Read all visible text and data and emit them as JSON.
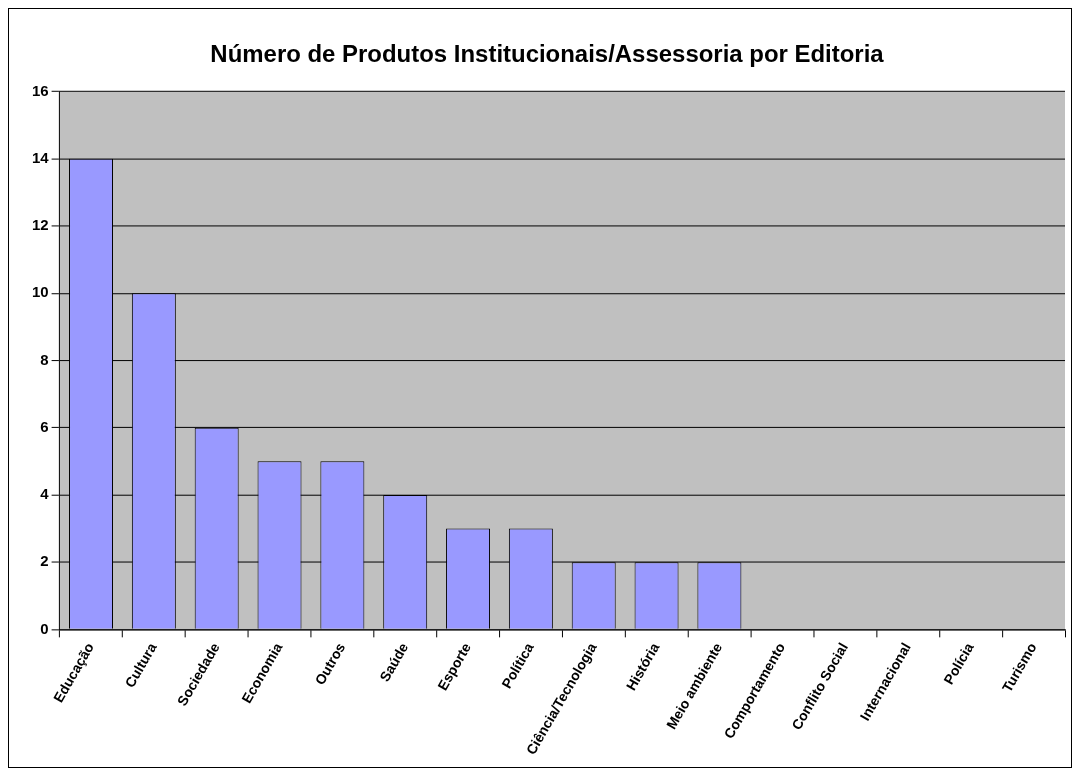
{
  "chart_data": {
    "type": "bar",
    "title": "Número de Produtos Institucionais/Assessoria por Editoria",
    "categories": [
      "Educação",
      "Cultura",
      "Sociedade",
      "Economia",
      "Outros",
      "Saúde",
      "Esporte",
      "Política",
      "Ciência/Tecnologia",
      "História",
      "Meio ambiente",
      "Comportamento",
      "Conflito Social",
      "Internacional",
      "Polícia",
      "Turismo"
    ],
    "values": [
      14,
      10,
      6,
      5,
      5,
      4,
      3,
      3,
      2,
      2,
      2,
      0,
      0,
      0,
      0,
      0
    ],
    "color": "#9999ff",
    "ylim": [
      0,
      16
    ],
    "yticks": [
      0,
      2,
      4,
      6,
      8,
      10,
      12,
      14,
      16
    ],
    "grid": "y",
    "legend": false
  }
}
